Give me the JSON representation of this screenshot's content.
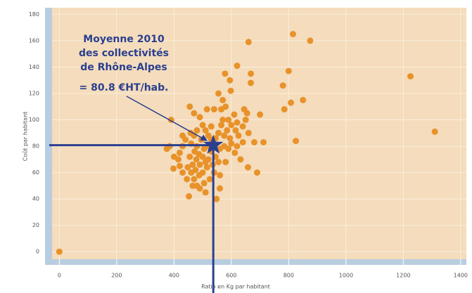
{
  "chart_data": {
    "type": "scatter",
    "x_label": "Ratio en Kg par habitant",
    "y_label": "Coût par habitant",
    "annotation": [
      "Moyenne 2010",
      "des collectivités",
      "de Rhône-Alpes",
      "= 80.8 €HT/hab."
    ],
    "mean": {
      "x": 537,
      "y": 80.8
    },
    "color": "#e8922a",
    "mean_color": "#2b3f8f",
    "xlim": [
      -50,
      1420
    ],
    "ylim": [
      -10,
      185
    ],
    "xticks": [
      0,
      200,
      400,
      600,
      800,
      1000,
      1200,
      1400
    ],
    "yticks": [
      0,
      20,
      40,
      60,
      80,
      100,
      120,
      140,
      160,
      180
    ],
    "grid": true,
    "x": [
      0,
      1225,
      1310,
      815,
      875,
      660,
      620,
      578,
      668,
      668,
      800,
      780,
      850,
      808,
      785,
      825,
      712,
      680,
      690,
      658,
      700,
      598,
      390,
      375,
      385,
      400,
      398,
      452,
      465,
      640,
      632,
      612,
      580,
      560,
      560,
      548,
      510,
      480,
      470,
      445,
      430,
      420,
      415,
      420,
      430,
      440,
      430,
      455,
      470,
      490,
      515,
      540,
      565,
      580,
      570,
      590,
      600,
      615,
      625,
      650,
      655,
      660,
      610,
      595,
      575,
      555,
      530,
      510,
      500,
      480,
      470,
      460,
      480,
      495,
      505,
      520,
      530,
      545,
      560,
      575,
      590,
      500,
      490,
      478,
      465,
      455,
      448,
      460,
      475,
      488,
      500,
      515,
      520,
      535,
      540,
      525,
      505,
      490,
      520,
      545,
      565,
      600,
      620,
      640,
      472,
      458,
      487,
      510,
      530,
      555,
      585,
      620,
      645,
      570,
      555,
      595
    ],
    "y": [
      0,
      133,
      91,
      165,
      160,
      159,
      141,
      135,
      135,
      128,
      137,
      126,
      115,
      113,
      108,
      84,
      83,
      83,
      60,
      64,
      104,
      122,
      100,
      78,
      80,
      72,
      63,
      42,
      50,
      95,
      70,
      75,
      68,
      58,
      48,
      40,
      45,
      50,
      55,
      55,
      60,
      65,
      70,
      75,
      80,
      85,
      88,
      110,
      105,
      102,
      108,
      108,
      108,
      110,
      100,
      100,
      96,
      92,
      88,
      100,
      105,
      90,
      104,
      86,
      88,
      90,
      95,
      92,
      96,
      92,
      88,
      82,
      80,
      85,
      78,
      80,
      76,
      72,
      78,
      80,
      78,
      72,
      66,
      70,
      66,
      72,
      64,
      60,
      62,
      58,
      60,
      64,
      70,
      66,
      60,
      55,
      52,
      48,
      88,
      86,
      96,
      82,
      80,
      83,
      76,
      90,
      74,
      68,
      85,
      68,
      92,
      98,
      108,
      115,
      120,
      130
    ]
  }
}
